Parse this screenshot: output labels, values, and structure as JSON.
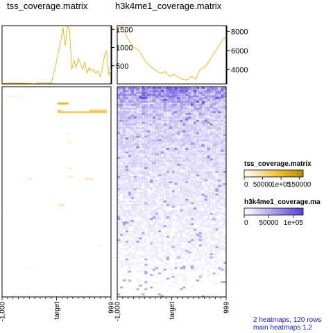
{
  "chart_data": {
    "type": "heatmap",
    "rows": 120,
    "columns_per_heatmap": 100,
    "heatmaps": [
      {
        "name": "tss_coverage.matrix",
        "title": "tss_coverage.matrix",
        "legend_title": "tss_coverage.matrix",
        "color_range": [
          "#ffffff",
          "#e8b820",
          "#b08818"
        ],
        "legend_ticks": [
          "0",
          "50000",
          "1e+05",
          "150000"
        ],
        "legend_range": [
          0,
          160000
        ],
        "x_tick_labels": [
          "-1,000",
          "target",
          "999"
        ],
        "profile": {
          "ylim": [
            0,
            1600
          ],
          "y_ticks": [
            500,
            1000,
            1500
          ],
          "color": "#e8b820",
          "x": [
            0,
            10,
            20,
            30,
            40,
            45,
            48,
            52,
            54,
            56,
            58,
            60,
            62,
            64,
            66,
            68,
            70,
            72,
            74,
            76,
            78,
            80,
            82,
            84,
            86,
            88,
            90,
            92,
            94,
            96,
            98,
            100
          ],
          "values": [
            20,
            25,
            20,
            15,
            30,
            20,
            350,
            900,
            1200,
            1550,
            1050,
            1580,
            1500,
            400,
            650,
            450,
            700,
            550,
            400,
            600,
            300,
            450,
            350,
            400,
            300,
            350,
            200,
            400,
            800,
            900,
            250,
            350
          ]
        }
      },
      {
        "name": "h3k4me1_coverage.matrix",
        "title": "h3k4me1_coverage.matrix",
        "legend_title": "h3k4me1_coverage.ma",
        "color_range": [
          "#ffffff",
          "#5a3fd6"
        ],
        "legend_ticks": [
          "0",
          "50000",
          "1e+05"
        ],
        "legend_range": [
          0,
          120000
        ],
        "x_tick_labels": [
          "-1,000",
          "target",
          "999"
        ],
        "profile": {
          "ylim": [
            2500,
            8600
          ],
          "y_ticks": [
            4000,
            6000,
            8000
          ],
          "color": "#e8b820",
          "x": [
            0,
            4,
            8,
            12,
            16,
            20,
            24,
            28,
            32,
            36,
            40,
            44,
            48,
            52,
            56,
            60,
            64,
            68,
            72,
            76,
            80,
            84,
            88,
            92,
            96,
            100
          ],
          "values": [
            8400,
            8500,
            7600,
            6800,
            6300,
            6000,
            5200,
            4600,
            4200,
            3900,
            3600,
            3800,
            3300,
            3500,
            3200,
            3000,
            2900,
            3300,
            3000,
            4000,
            4200,
            4800,
            5600,
            6200,
            7000,
            7500
          ]
        }
      }
    ]
  },
  "info": {
    "line1": "2 heatmaps, 120 rows",
    "line2": "main heatmaps 1,2"
  }
}
